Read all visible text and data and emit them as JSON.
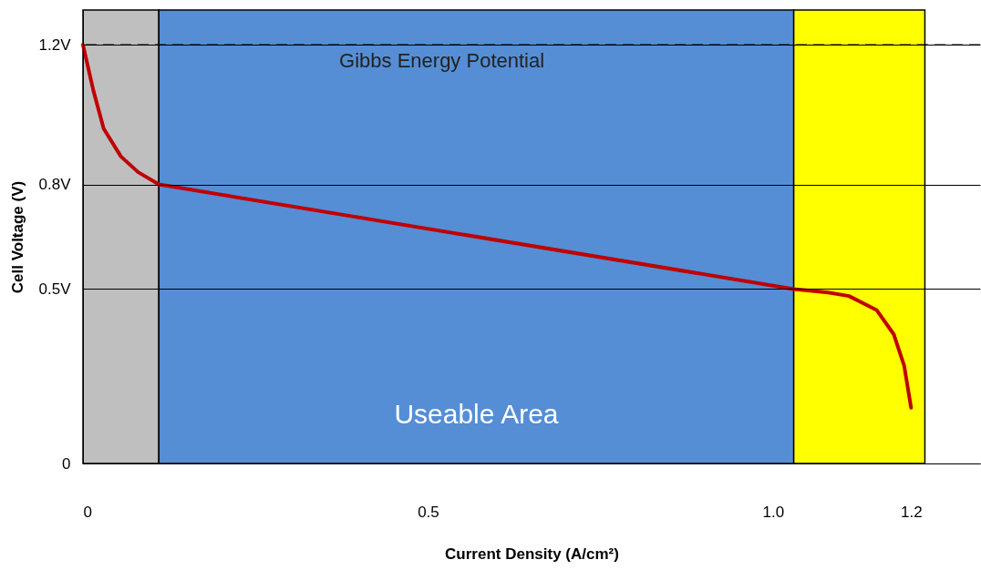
{
  "chart_data": {
    "type": "line",
    "xlabel": "Current Density (A/cm²)",
    "ylabel": "Cell Voltage (V)",
    "xlim": [
      0,
      1.3
    ],
    "ylim": [
      0,
      1.3
    ],
    "xticks": [
      0,
      0.5,
      {
        "value": 1,
        "label": "1.0"
      },
      1.2
    ],
    "yticks": [
      0,
      {
        "value": 0.5,
        "label": "0.5V"
      },
      {
        "value": 0.8,
        "label": "0.8V"
      },
      {
        "value": 1.2,
        "label": "1.2V"
      }
    ],
    "grid": "y",
    "series": [
      {
        "color": "#c00000",
        "x": [
          0,
          0.015,
          0.03,
          0.055,
          0.08,
          0.11,
          1.03,
          1.08,
          1.11,
          1.15,
          1.175,
          1.19,
          1.2
        ],
        "values": [
          1.2,
          1.07,
          0.96,
          0.88,
          0.835,
          0.8,
          0.5,
          0.49,
          0.48,
          0.44,
          0.37,
          0.28,
          0.16
        ]
      }
    ],
    "bands": [
      {
        "axis": "x",
        "from": 0,
        "to": 0.11,
        "color": "#bfbfbf"
      },
      {
        "axis": "x",
        "from": 0.11,
        "to": 1.03,
        "label": "Useable Area",
        "color": "#558ed5"
      },
      {
        "axis": "x",
        "from": 1.03,
        "to": 1.22,
        "color": "#ffff00"
      }
    ],
    "ref_lines": [
      {
        "axis": "y",
        "value": 1.2,
        "label": "Gibbs Energy Potential",
        "line_style": "dashed",
        "color": "#000000"
      }
    ]
  }
}
